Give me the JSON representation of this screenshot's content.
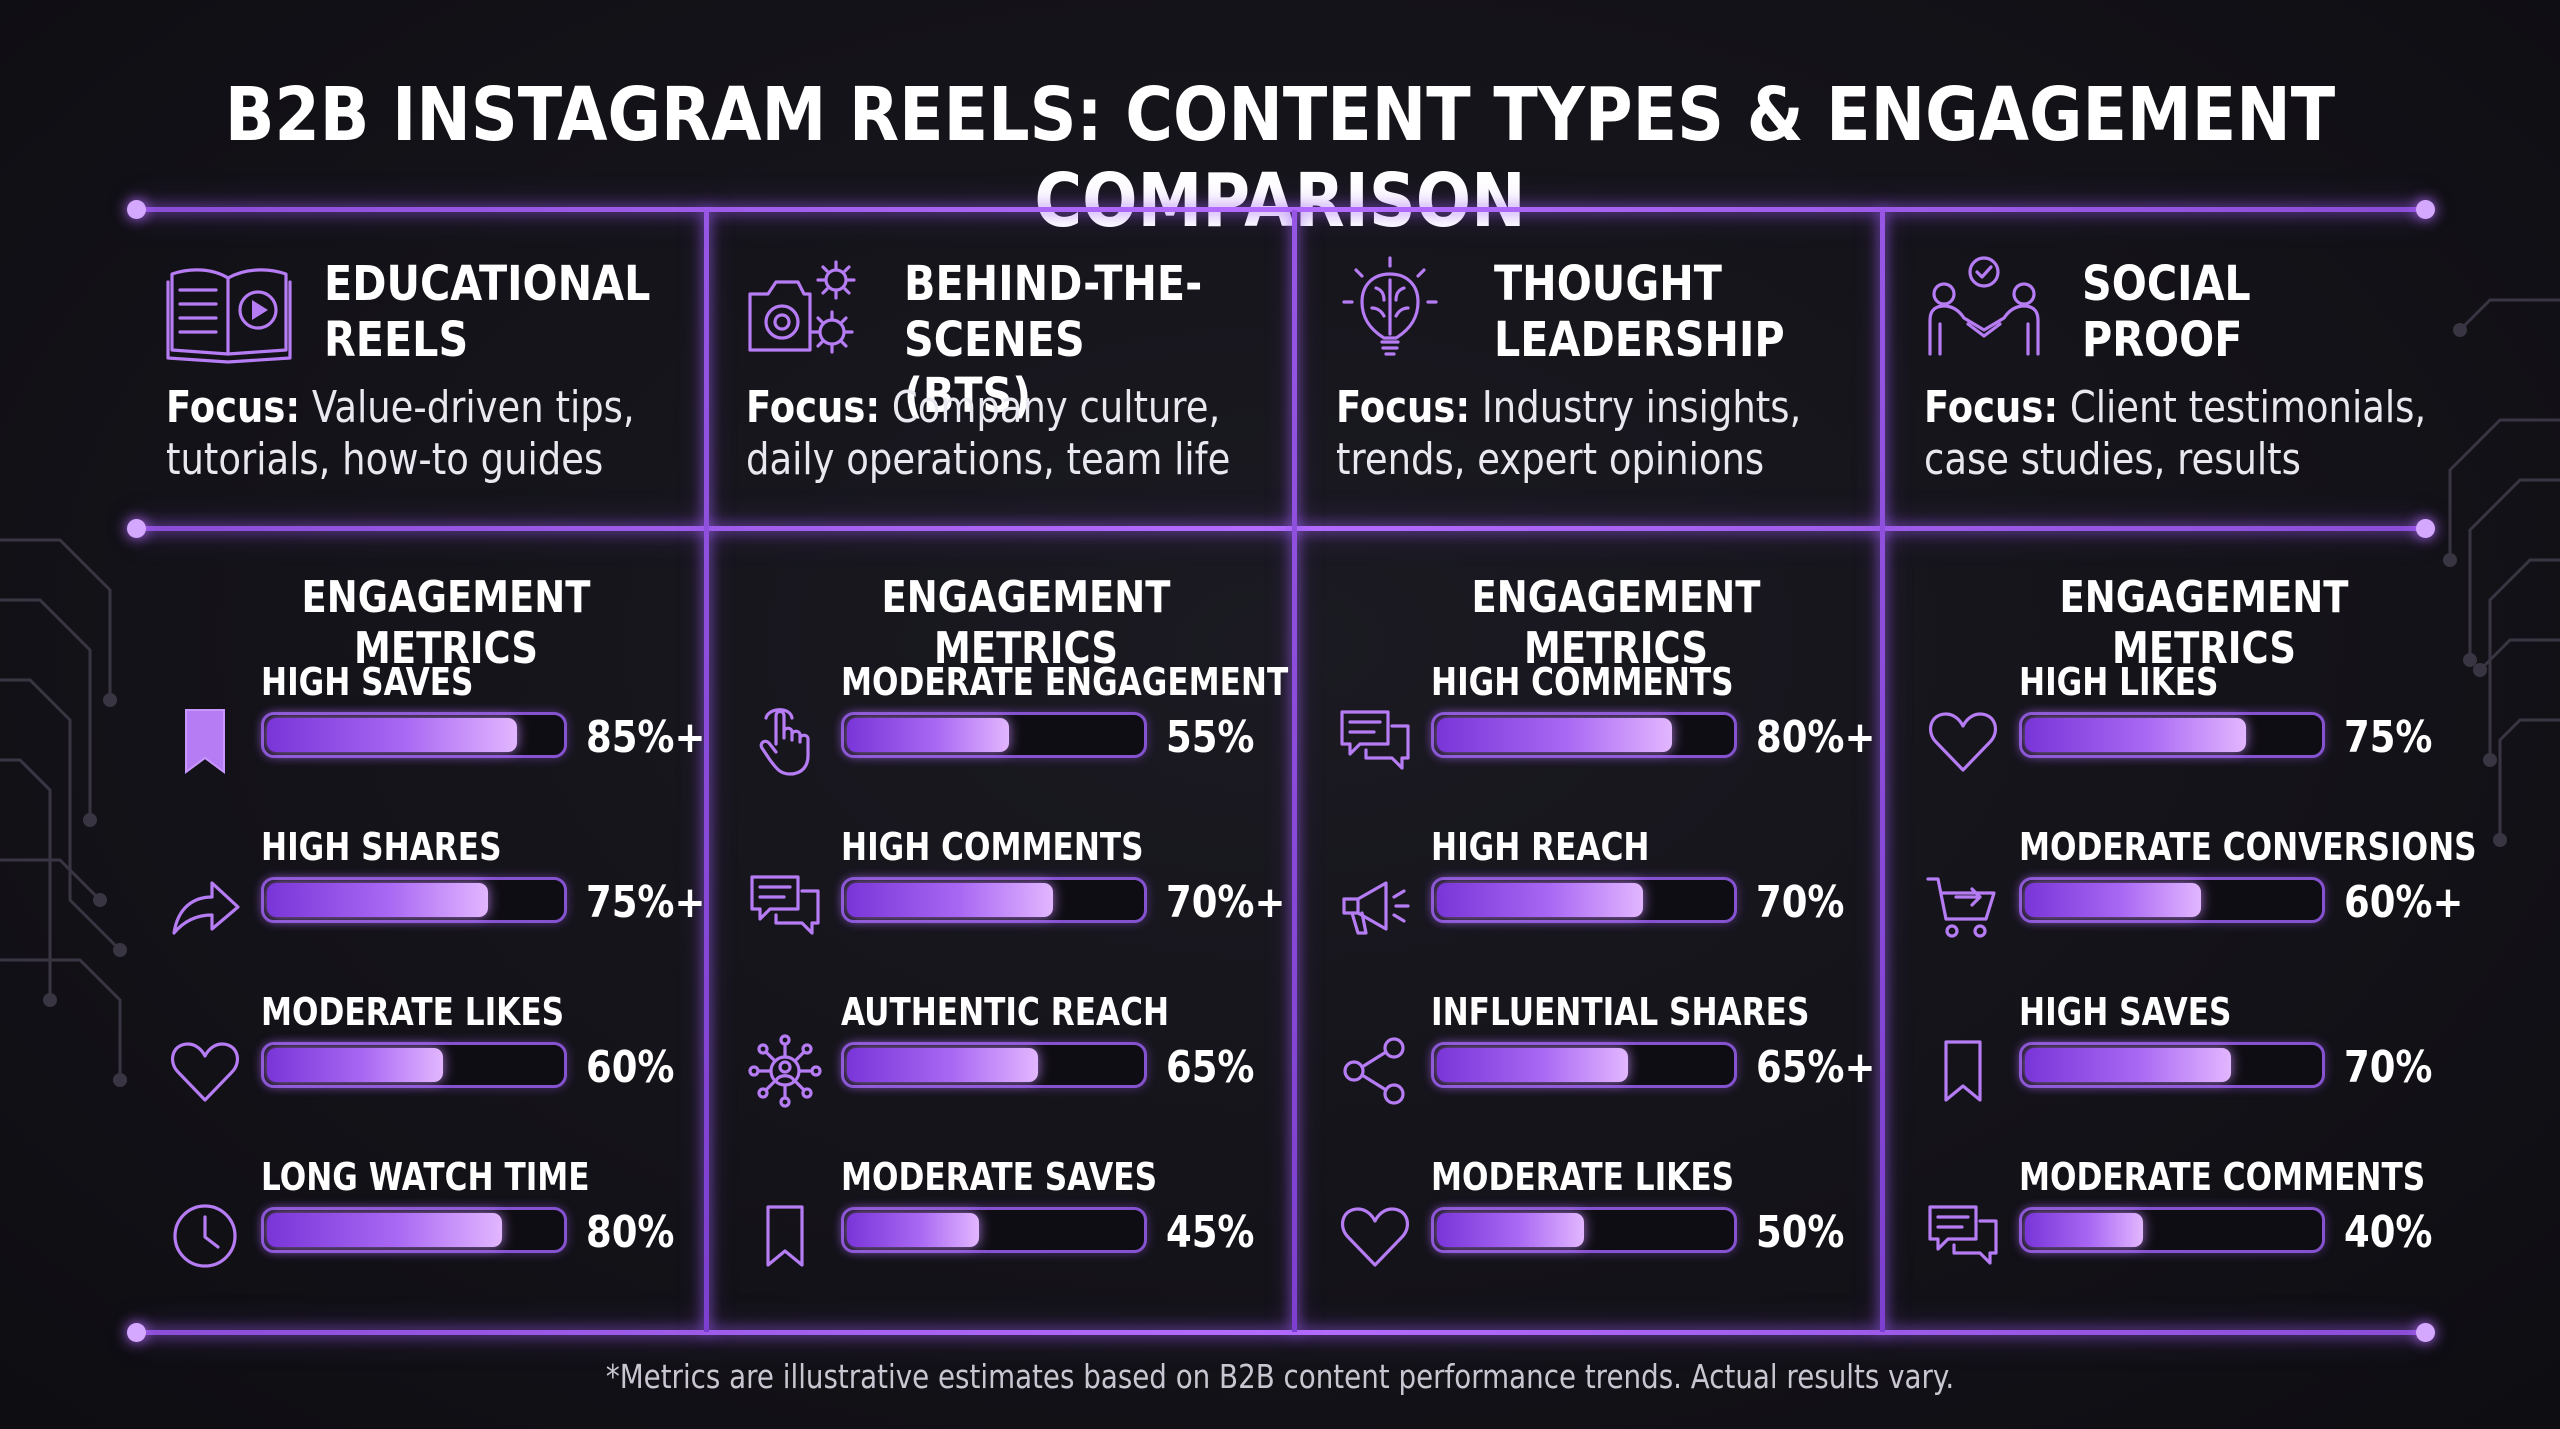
{
  "title": "B2B INSTAGRAM REELS: CONTENT TYPES & ENGAGEMENT COMPARISON",
  "footnote": "*Metrics are illustrative estimates based on B2B content performance trends. Actual results vary.",
  "colors": {
    "accent": "#b46cff",
    "bar_start": "#7a35d8",
    "bar_end": "#e2b6ff",
    "background": "#141319"
  },
  "chart_data": [
    {
      "type": "bar",
      "title": "EDUCATIONAL REELS",
      "title_lines": [
        "EDUCATIONAL",
        "REELS"
      ],
      "icon": "open-book-play-icon",
      "focus_label": "Focus:",
      "focus_lines": [
        "Value-driven tips,",
        "tutorials, how-to guides"
      ],
      "metrics_heading": "ENGAGEMENT METRICS",
      "ylim": [
        0,
        100
      ],
      "metrics": [
        {
          "label": "HIGH SAVES",
          "value": 85,
          "display": "85%+",
          "icon": "bookmark-filled-icon"
        },
        {
          "label": "HIGH SHARES",
          "value": 75,
          "display": "75%+",
          "icon": "share-arrow-icon"
        },
        {
          "label": "MODERATE LIKES",
          "value": 60,
          "display": "60%",
          "icon": "heart-icon"
        },
        {
          "label": "LONG WATCH TIME",
          "value": 80,
          "display": "80%",
          "icon": "clock-icon"
        }
      ]
    },
    {
      "type": "bar",
      "title": "BEHIND-THE-SCENES (BTS)",
      "title_lines": [
        "BEHIND-THE-SCENES",
        "(BTS)"
      ],
      "icon": "camera-gears-icon",
      "focus_label": "Focus:",
      "focus_lines": [
        "Company culture,",
        "daily operations, team life"
      ],
      "metrics_heading": "ENGAGEMENT METRICS",
      "ylim": [
        0,
        100
      ],
      "metrics": [
        {
          "label": "MODERATE ENGAGEMENT",
          "value": 55,
          "display": "55%",
          "icon": "tap-hand-icon"
        },
        {
          "label": "HIGH COMMENTS",
          "value": 70,
          "display": "70%+",
          "icon": "chat-bubbles-icon"
        },
        {
          "label": "AUTHENTIC REACH",
          "value": 65,
          "display": "65%",
          "icon": "network-person-icon"
        },
        {
          "label": "MODERATE SAVES",
          "value": 45,
          "display": "45%",
          "icon": "bookmark-icon"
        }
      ]
    },
    {
      "type": "bar",
      "title": "THOUGHT LEADERSHIP",
      "title_lines": [
        "THOUGHT",
        "LEADERSHIP"
      ],
      "icon": "brain-bulb-icon",
      "focus_label": "Focus:",
      "focus_lines": [
        "Industry insights,",
        "trends, expert opinions"
      ],
      "metrics_heading": "ENGAGEMENT METRICS",
      "ylim": [
        0,
        100
      ],
      "metrics": [
        {
          "label": "HIGH COMMENTS",
          "value": 80,
          "display": "80%+",
          "icon": "chat-bubbles-icon"
        },
        {
          "label": "HIGH REACH",
          "value": 70,
          "display": "70%",
          "icon": "megaphone-icon"
        },
        {
          "label": "INFLUENTIAL SHARES",
          "value": 65,
          "display": "65%+",
          "icon": "share-nodes-icon"
        },
        {
          "label": "MODERATE LIKES",
          "value": 50,
          "display": "50%",
          "icon": "heart-icon"
        }
      ]
    },
    {
      "type": "bar",
      "title": "SOCIAL PROOF",
      "title_lines": [
        "SOCIAL",
        "PROOF"
      ],
      "icon": "handshake-check-icon",
      "focus_label": "Focus:",
      "focus_lines": [
        "Client testimonials,",
        "case studies, results"
      ],
      "metrics_heading": "ENGAGEMENT METRICS",
      "ylim": [
        0,
        100
      ],
      "metrics": [
        {
          "label": "HIGH LIKES",
          "value": 75,
          "display": "75%",
          "icon": "heart-icon"
        },
        {
          "label": "MODERATE CONVERSIONS",
          "value": 60,
          "display": "60%+",
          "icon": "cart-icon"
        },
        {
          "label": "HIGH SAVES",
          "value": 70,
          "display": "70%",
          "icon": "bookmark-icon"
        },
        {
          "label": "MODERATE COMMENTS",
          "value": 40,
          "display": "40%",
          "icon": "chat-bubbles-icon"
        }
      ]
    }
  ]
}
